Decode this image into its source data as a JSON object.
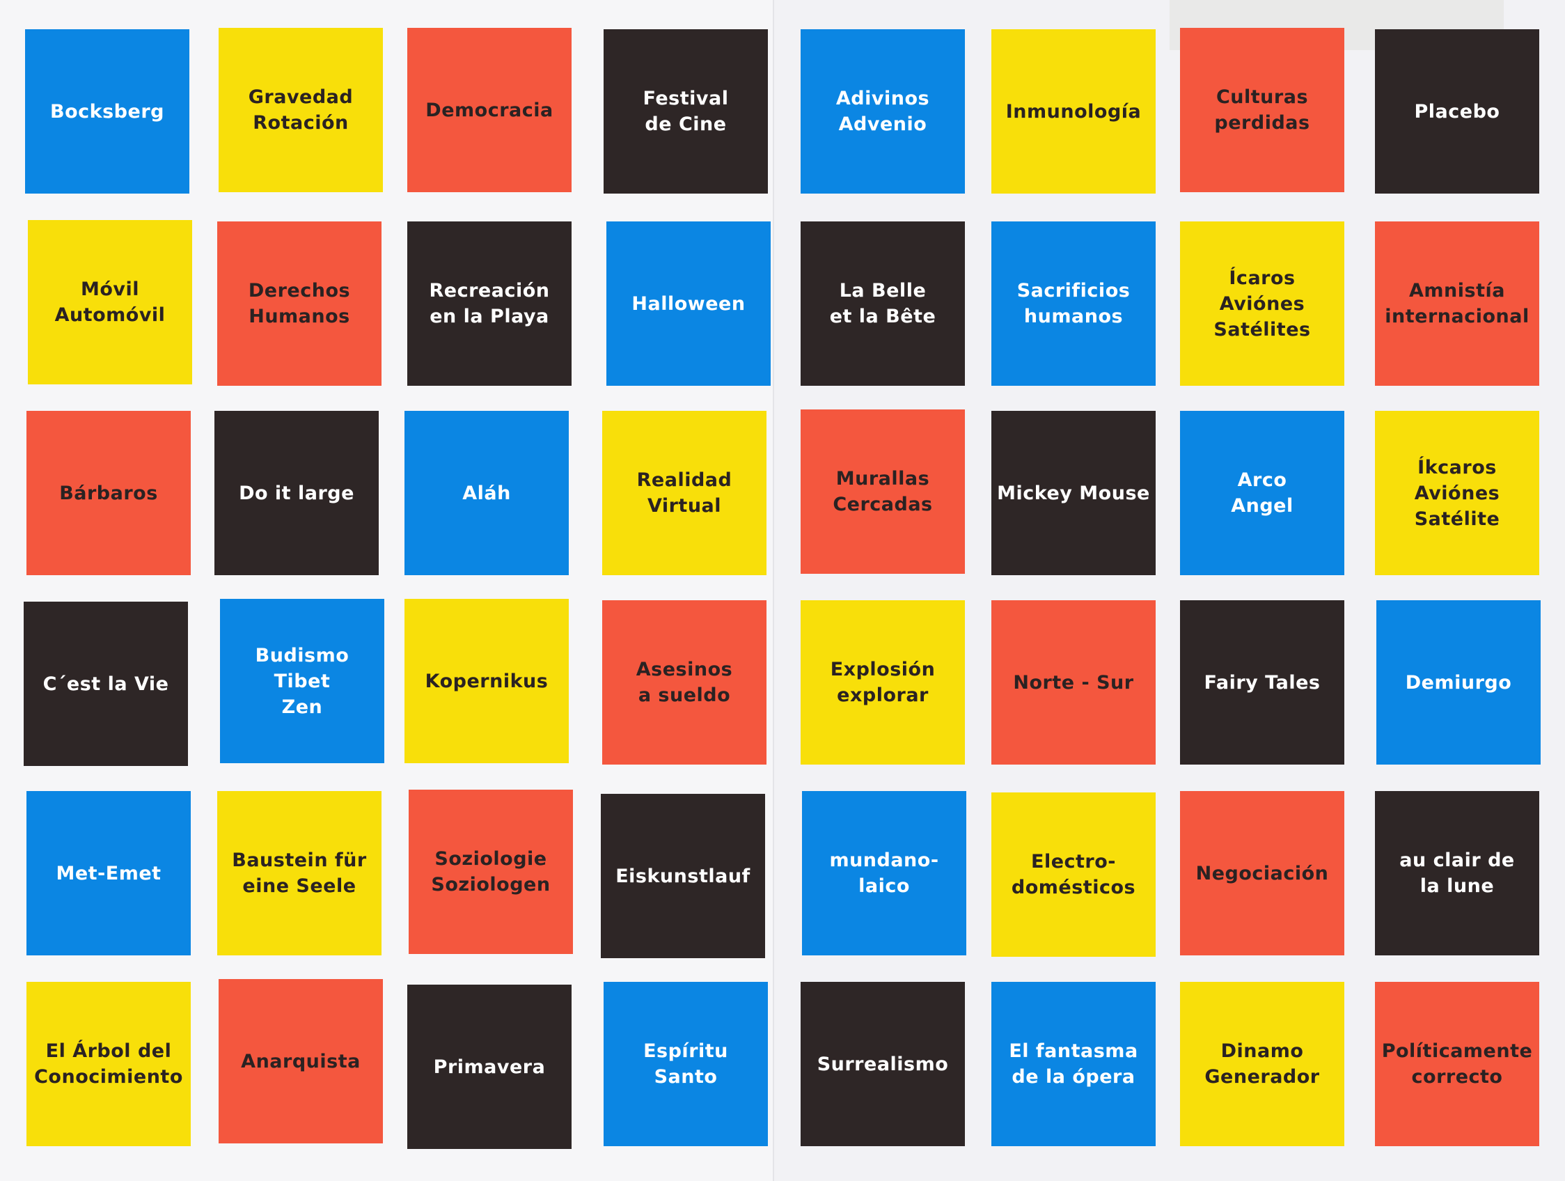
{
  "palette": {
    "blue": "#0b86e3",
    "yellow": "#f8df0a",
    "red": "#f4573e",
    "black": "#2e2626"
  },
  "left_sheet": {
    "cards": [
      {
        "label": "Bocksberg",
        "color": "blue"
      },
      {
        "label": "Gravedad\nRotación",
        "color": "yellow"
      },
      {
        "label": "Democracia",
        "color": "red"
      },
      {
        "label": "Festival\nde Cine",
        "color": "black"
      },
      {
        "label": "Móvil\nAutomóvil",
        "color": "yellow"
      },
      {
        "label": "Derechos\nHumanos",
        "color": "red"
      },
      {
        "label": "Recreación\nen la Playa",
        "color": "black"
      },
      {
        "label": "Halloween",
        "color": "blue"
      },
      {
        "label": "Bárbaros",
        "color": "red"
      },
      {
        "label": "Do it large",
        "color": "black"
      },
      {
        "label": "Aláh",
        "color": "blue"
      },
      {
        "label": "Realidad\nVirtual",
        "color": "yellow"
      },
      {
        "label": "C´est la Vie",
        "color": "black"
      },
      {
        "label": "Budismo\nTibet\nZen",
        "color": "blue"
      },
      {
        "label": "Kopernikus",
        "color": "yellow"
      },
      {
        "label": "Asesinos\na sueldo",
        "color": "red"
      },
      {
        "label": "Met-Emet",
        "color": "blue"
      },
      {
        "label": "Baustein für\neine Seele",
        "color": "yellow"
      },
      {
        "label": "Soziologie\nSoziologen",
        "color": "red"
      },
      {
        "label": "Eiskunstlauf",
        "color": "black"
      },
      {
        "label": "El Árbol del\nConocimiento",
        "color": "yellow"
      },
      {
        "label": "Anarquista",
        "color": "red"
      },
      {
        "label": "Primavera",
        "color": "black"
      },
      {
        "label": "Espíritu Santo",
        "color": "blue"
      }
    ]
  },
  "right_sheet": {
    "cards": [
      {
        "label": "Adivinos\nAdvenio",
        "color": "blue"
      },
      {
        "label": "Inmunología",
        "color": "yellow"
      },
      {
        "label": "Culturas\nperdidas",
        "color": "red"
      },
      {
        "label": "Placebo",
        "color": "black"
      },
      {
        "label": "La Belle\net la Bête",
        "color": "black"
      },
      {
        "label": "Sacrificios\nhumanos",
        "color": "blue"
      },
      {
        "label": "Ícaros\nAviónes\nSatélites",
        "color": "yellow"
      },
      {
        "label": "Amnistía\ninternacional",
        "color": "red"
      },
      {
        "label": "Murallas\nCercadas",
        "color": "red"
      },
      {
        "label": "Mickey Mouse",
        "color": "black"
      },
      {
        "label": "Arco\nAngel",
        "color": "blue"
      },
      {
        "label": "Íkcaros\nAviónes\nSatélite",
        "color": "yellow"
      },
      {
        "label": "Explosión\nexplorar",
        "color": "yellow"
      },
      {
        "label": "Norte - Sur",
        "color": "red"
      },
      {
        "label": "Fairy Tales",
        "color": "black"
      },
      {
        "label": "Demiurgo",
        "color": "blue"
      },
      {
        "label": "mundano-laico",
        "color": "blue"
      },
      {
        "label": "Electro-\ndomésticos",
        "color": "yellow"
      },
      {
        "label": "Negociación",
        "color": "red"
      },
      {
        "label": "au clair de\nla lune",
        "color": "black"
      },
      {
        "label": "Surrealismo",
        "color": "black"
      },
      {
        "label": "El fantasma\nde la ópera",
        "color": "blue"
      },
      {
        "label": "Dinamo\nGenerador",
        "color": "yellow"
      },
      {
        "label": "Políticamente\ncorrecto",
        "color": "red"
      }
    ]
  }
}
